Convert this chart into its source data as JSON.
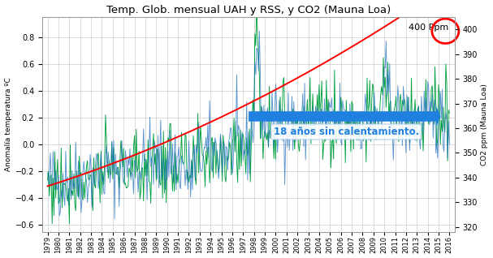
{
  "title": "Temp. Glob. mensual UAH y RSS, y CO2 (Mauna Loa)",
  "ylabel_left": "Anomalía temperatura ºC",
  "ylabel_right": "CO2 ppm (Mauna Loa)",
  "ylim_left": [
    -0.65,
    0.95
  ],
  "ylim_right": [
    318,
    405
  ],
  "yticks_left": [
    -0.6,
    -0.4,
    -0.2,
    0,
    0.2,
    0.4,
    0.6,
    0.8
  ],
  "yticks_right": [
    320,
    330,
    340,
    350,
    360,
    370,
    380,
    390,
    400
  ],
  "xlim": [
    1978.5,
    2016.5
  ],
  "co2_color": "#FF0000",
  "temp_uah_color": "#1F6FBF",
  "temp_rss_color": "#00A040",
  "arrow_color": "#2080E0",
  "annotation_text": "18 años sin calentamiento.",
  "ppm_label": "400 Ppm",
  "ppm_circle_color": "#FF0000",
  "background_color": "#FFFFFF",
  "grid_color": "#CCCCCC"
}
